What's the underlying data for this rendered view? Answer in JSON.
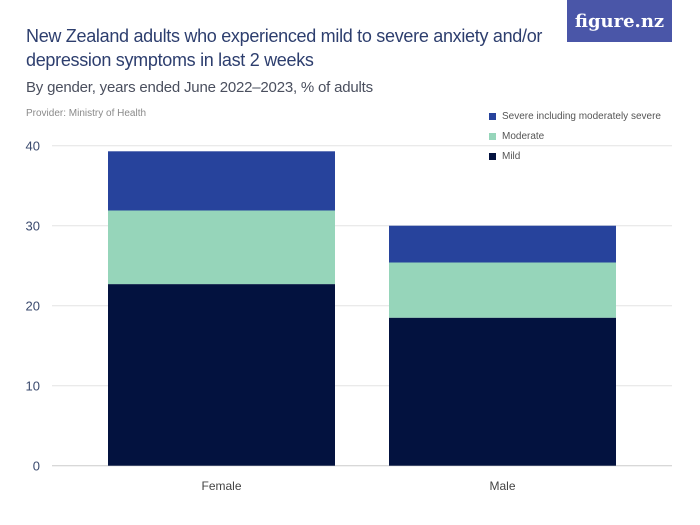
{
  "logo": "figure.nz",
  "chart_data": {
    "type": "bar",
    "stacked": true,
    "title": "New Zealand adults who experienced mild to severe anxiety and/or depression symptoms in last 2 weeks",
    "subtitle": "By gender, years ended June 2022–2023, % of adults",
    "provider": "Provider: Ministry of Health",
    "categories": [
      "Female",
      "Male"
    ],
    "series": [
      {
        "name": "Mild",
        "color": "#03123f",
        "values": [
          22.7,
          18.5
        ]
      },
      {
        "name": "Moderate",
        "color": "#96d5ba",
        "values": [
          9.2,
          6.9
        ]
      },
      {
        "name": "Severe including moderately severe",
        "color": "#27439c",
        "values": [
          7.4,
          4.6
        ]
      }
    ],
    "ylim": [
      0,
      40
    ],
    "yticks": [
      0,
      10,
      20,
      30,
      40
    ],
    "grid": true,
    "legend_placement": "top-right"
  }
}
